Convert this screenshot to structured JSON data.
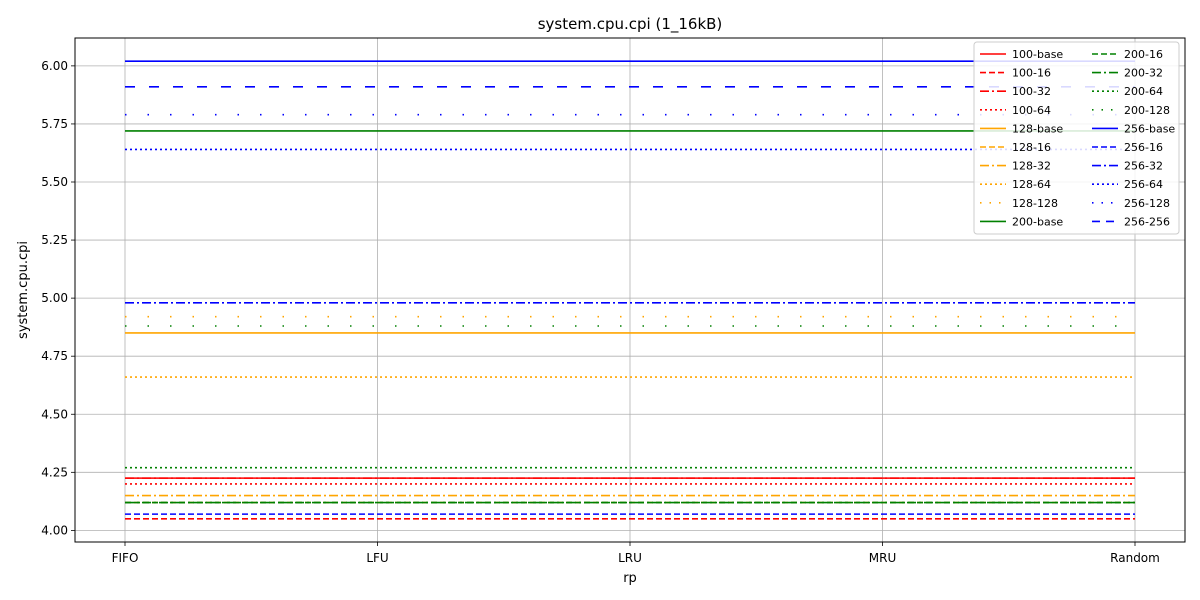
{
  "chart_data": {
    "type": "line",
    "title": "system.cpu.cpi (1_16kB)",
    "xlabel": "rp",
    "ylabel": "system.cpu.cpi",
    "categories": [
      "FIFO",
      "LFU",
      "LRU",
      "MRU",
      "Random"
    ],
    "ylim": [
      3.95,
      6.12
    ],
    "yticks": [
      "4.00",
      "4.25",
      "4.50",
      "4.75",
      "5.00",
      "5.25",
      "5.50",
      "5.75",
      "6.00"
    ],
    "grid": true,
    "legend_position": "top-right",
    "legend_columns": 2,
    "series": [
      {
        "name": "100-base",
        "color": "#ff0000",
        "style": "solid",
        "values": [
          4.225,
          4.225,
          4.225,
          4.225,
          4.225
        ]
      },
      {
        "name": "100-16",
        "color": "#ff0000",
        "style": "dashed",
        "values": [
          4.05,
          4.05,
          4.05,
          4.05,
          4.05
        ]
      },
      {
        "name": "100-32",
        "color": "#ff0000",
        "style": "dashdot",
        "values": [
          4.225,
          4.225,
          4.225,
          4.225,
          4.225
        ]
      },
      {
        "name": "100-64",
        "color": "#ff0000",
        "style": "dotted",
        "values": [
          4.2,
          4.2,
          4.2,
          4.2,
          4.2
        ]
      },
      {
        "name": "128-base",
        "color": "#ffa500",
        "style": "solid",
        "values": [
          4.85,
          4.85,
          4.85,
          4.85,
          4.85
        ]
      },
      {
        "name": "128-16",
        "color": "#ffa500",
        "style": "dashed",
        "values": [
          4.12,
          4.12,
          4.12,
          4.12,
          4.12
        ]
      },
      {
        "name": "128-32",
        "color": "#ffa500",
        "style": "dashdot",
        "values": [
          4.15,
          4.15,
          4.15,
          4.15,
          4.15
        ]
      },
      {
        "name": "128-64",
        "color": "#ffa500",
        "style": "dotted",
        "values": [
          4.66,
          4.66,
          4.66,
          4.66,
          4.66
        ]
      },
      {
        "name": "128-128",
        "color": "#ffa500",
        "style": "loosedot",
        "values": [
          4.92,
          4.92,
          4.92,
          4.92,
          4.92
        ]
      },
      {
        "name": "200-base",
        "color": "#008000",
        "style": "solid",
        "values": [
          5.72,
          5.72,
          5.72,
          5.72,
          5.72
        ]
      },
      {
        "name": "200-16",
        "color": "#008000",
        "style": "dashed",
        "values": [
          4.12,
          4.12,
          4.12,
          4.12,
          4.12
        ]
      },
      {
        "name": "200-32",
        "color": "#008000",
        "style": "dashdot",
        "values": [
          4.12,
          4.12,
          4.12,
          4.12,
          4.12
        ]
      },
      {
        "name": "200-64",
        "color": "#008000",
        "style": "dotted",
        "values": [
          4.27,
          4.27,
          4.27,
          4.27,
          4.27
        ]
      },
      {
        "name": "200-128",
        "color": "#008000",
        "style": "loosedot",
        "values": [
          4.88,
          4.88,
          4.88,
          4.88,
          4.88
        ]
      },
      {
        "name": "256-base",
        "color": "#0000ff",
        "style": "solid",
        "values": [
          6.02,
          6.02,
          6.02,
          6.02,
          6.02
        ]
      },
      {
        "name": "256-16",
        "color": "#0000ff",
        "style": "dashed",
        "values": [
          4.07,
          4.07,
          4.07,
          4.07,
          4.07
        ]
      },
      {
        "name": "256-32",
        "color": "#0000ff",
        "style": "dashdot",
        "values": [
          4.98,
          4.98,
          4.98,
          4.98,
          4.98
        ]
      },
      {
        "name": "256-64",
        "color": "#0000ff",
        "style": "dotted",
        "values": [
          5.64,
          5.64,
          5.64,
          5.64,
          5.64
        ]
      },
      {
        "name": "256-128",
        "color": "#0000ff",
        "style": "loosedot",
        "values": [
          5.79,
          5.79,
          5.79,
          5.79,
          5.79
        ]
      },
      {
        "name": "256-256",
        "color": "#0000ff",
        "style": "loosedash",
        "values": [
          5.91,
          5.91,
          5.91,
          5.91,
          5.91
        ]
      }
    ]
  }
}
